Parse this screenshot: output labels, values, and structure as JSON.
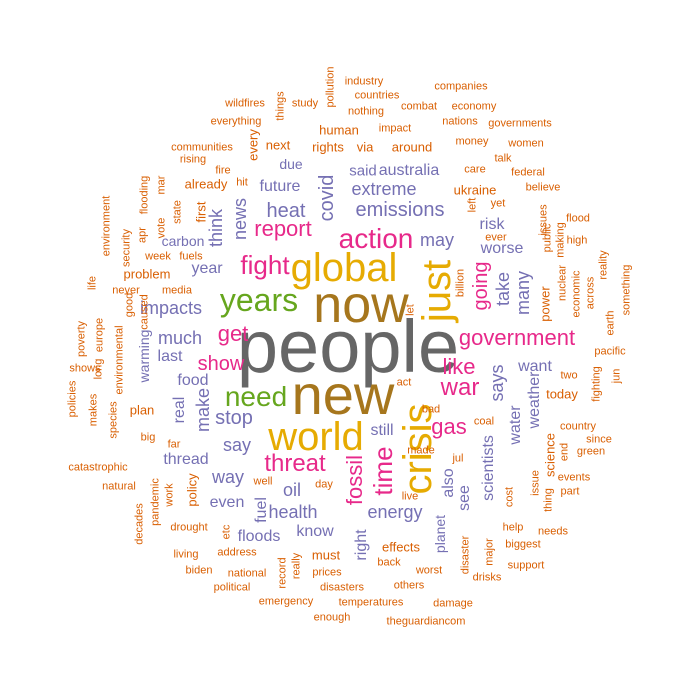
{
  "colors": {
    "gray": "#666666",
    "brown": "#a6761d",
    "gold": "#e6ab02",
    "pink": "#e7298a",
    "green": "#66a61e",
    "purple": "#7570b3",
    "orange": "#d95f02"
  },
  "words": [
    {
      "text": "people",
      "color": "gray"
    },
    {
      "text": "new",
      "color": "brown"
    },
    {
      "text": "now",
      "color": "brown"
    },
    {
      "text": "global",
      "color": "gold"
    },
    {
      "text": "world",
      "color": "gold"
    },
    {
      "text": "crisis",
      "color": "gold"
    },
    {
      "text": "just",
      "color": "gold"
    },
    {
      "text": "years",
      "color": "green"
    },
    {
      "text": "need",
      "color": "green"
    },
    {
      "text": "action",
      "color": "pink"
    },
    {
      "text": "fight",
      "color": "pink"
    },
    {
      "text": "time",
      "color": "pink"
    },
    {
      "text": "threat",
      "color": "pink"
    },
    {
      "text": "war",
      "color": "pink"
    },
    {
      "text": "government",
      "color": "pink"
    },
    {
      "text": "report",
      "color": "pink"
    },
    {
      "text": "like",
      "color": "pink"
    },
    {
      "text": "gas",
      "color": "pink"
    },
    {
      "text": "get",
      "color": "pink"
    },
    {
      "text": "show",
      "color": "pink"
    },
    {
      "text": "fossil",
      "color": "pink"
    },
    {
      "text": "going",
      "color": "pink"
    },
    {
      "text": "emissions",
      "color": "purple"
    },
    {
      "text": "heat",
      "color": "purple"
    },
    {
      "text": "extreme",
      "color": "purple"
    },
    {
      "text": "future",
      "color": "purple"
    },
    {
      "text": "covid",
      "color": "purple"
    },
    {
      "text": "australia",
      "color": "purple"
    },
    {
      "text": "said",
      "color": "purple"
    },
    {
      "text": "may",
      "color": "purple"
    },
    {
      "text": "news",
      "color": "purple"
    },
    {
      "text": "think",
      "color": "purple"
    },
    {
      "text": "year",
      "color": "purple"
    },
    {
      "text": "impacts",
      "color": "purple"
    },
    {
      "text": "much",
      "color": "purple"
    },
    {
      "text": "last",
      "color": "purple"
    },
    {
      "text": "food",
      "color": "purple"
    },
    {
      "text": "make",
      "color": "purple"
    },
    {
      "text": "stop",
      "color": "purple"
    },
    {
      "text": "say",
      "color": "purple"
    },
    {
      "text": "way",
      "color": "purple"
    },
    {
      "text": "even",
      "color": "purple"
    },
    {
      "text": "thread",
      "color": "purple"
    },
    {
      "text": "oil",
      "color": "purple"
    },
    {
      "text": "health",
      "color": "purple"
    },
    {
      "text": "know",
      "color": "purple"
    },
    {
      "text": "fuel",
      "color": "purple"
    },
    {
      "text": "floods",
      "color": "purple"
    },
    {
      "text": "energy",
      "color": "purple"
    },
    {
      "text": "right",
      "color": "purple"
    },
    {
      "text": "still",
      "color": "purple"
    },
    {
      "text": "also",
      "color": "purple"
    },
    {
      "text": "see",
      "color": "purple"
    },
    {
      "text": "says",
      "color": "purple"
    },
    {
      "text": "take",
      "color": "purple"
    },
    {
      "text": "many",
      "color": "purple"
    },
    {
      "text": "worse",
      "color": "purple"
    },
    {
      "text": "risk",
      "color": "purple"
    },
    {
      "text": "want",
      "color": "purple"
    },
    {
      "text": "water",
      "color": "purple"
    },
    {
      "text": "weather",
      "color": "purple"
    },
    {
      "text": "scientists",
      "color": "purple"
    },
    {
      "text": "planet",
      "color": "purple"
    },
    {
      "text": "warming",
      "color": "purple"
    },
    {
      "text": "real",
      "color": "purple"
    },
    {
      "text": "carbon",
      "color": "purple"
    },
    {
      "text": "due",
      "color": "purple"
    },
    {
      "text": "human",
      "color": "orange"
    },
    {
      "text": "rights",
      "color": "orange"
    },
    {
      "text": "via",
      "color": "orange"
    },
    {
      "text": "around",
      "color": "orange"
    },
    {
      "text": "ukraine",
      "color": "orange"
    },
    {
      "text": "already",
      "color": "orange"
    },
    {
      "text": "first",
      "color": "orange"
    },
    {
      "text": "every",
      "color": "orange"
    },
    {
      "text": "next",
      "color": "orange"
    },
    {
      "text": "problem",
      "color": "orange"
    },
    {
      "text": "plan",
      "color": "orange"
    },
    {
      "text": "policy",
      "color": "orange"
    },
    {
      "text": "must",
      "color": "orange"
    },
    {
      "text": "effects",
      "color": "orange"
    },
    {
      "text": "today",
      "color": "orange"
    },
    {
      "text": "power",
      "color": "orange"
    },
    {
      "text": "science",
      "color": "orange"
    },
    {
      "text": "pollution",
      "color": "orange"
    },
    {
      "text": "industry",
      "color": "orange"
    },
    {
      "text": "countries",
      "color": "orange"
    },
    {
      "text": "companies",
      "color": "orange"
    },
    {
      "text": "study",
      "color": "orange"
    },
    {
      "text": "things",
      "color": "orange"
    },
    {
      "text": "wildfires",
      "color": "orange"
    },
    {
      "text": "everything",
      "color": "orange"
    },
    {
      "text": "nothing",
      "color": "orange"
    },
    {
      "text": "combat",
      "color": "orange"
    },
    {
      "text": "economy",
      "color": "orange"
    },
    {
      "text": "nations",
      "color": "orange"
    },
    {
      "text": "governments",
      "color": "orange"
    },
    {
      "text": "impact",
      "color": "orange"
    },
    {
      "text": "money",
      "color": "orange"
    },
    {
      "text": "women",
      "color": "orange"
    },
    {
      "text": "communities",
      "color": "orange"
    },
    {
      "text": "rising",
      "color": "orange"
    },
    {
      "text": "fire",
      "color": "orange"
    },
    {
      "text": "hit",
      "color": "orange"
    },
    {
      "text": "care",
      "color": "orange"
    },
    {
      "text": "talk",
      "color": "orange"
    },
    {
      "text": "federal",
      "color": "orange"
    },
    {
      "text": "believe",
      "color": "orange"
    },
    {
      "text": "flooding",
      "color": "orange"
    },
    {
      "text": "mar",
      "color": "orange"
    },
    {
      "text": "state",
      "color": "orange"
    },
    {
      "text": "apr",
      "color": "orange"
    },
    {
      "text": "vote",
      "color": "orange"
    },
    {
      "text": "environment",
      "color": "orange"
    },
    {
      "text": "security",
      "color": "orange"
    },
    {
      "text": "week",
      "color": "orange"
    },
    {
      "text": "fuels",
      "color": "orange"
    },
    {
      "text": "life",
      "color": "orange"
    },
    {
      "text": "never",
      "color": "orange"
    },
    {
      "text": "media",
      "color": "orange"
    },
    {
      "text": "caused",
      "color": "orange"
    },
    {
      "text": "good",
      "color": "orange"
    },
    {
      "text": "yet",
      "color": "orange"
    },
    {
      "text": "ever",
      "color": "orange"
    },
    {
      "text": "left",
      "color": "orange"
    },
    {
      "text": "public",
      "color": "orange"
    },
    {
      "text": "issues",
      "color": "orange"
    },
    {
      "text": "making",
      "color": "orange"
    },
    {
      "text": "high",
      "color": "orange"
    },
    {
      "text": "flood",
      "color": "orange"
    },
    {
      "text": "reality",
      "color": "orange"
    },
    {
      "text": "something",
      "color": "orange"
    },
    {
      "text": "billion",
      "color": "orange"
    },
    {
      "text": "economic",
      "color": "orange"
    },
    {
      "text": "nuclear",
      "color": "orange"
    },
    {
      "text": "across",
      "color": "orange"
    },
    {
      "text": "earth",
      "color": "orange"
    },
    {
      "text": "let",
      "color": "orange"
    },
    {
      "text": "poverty",
      "color": "orange"
    },
    {
      "text": "europe",
      "color": "orange"
    },
    {
      "text": "long",
      "color": "orange"
    },
    {
      "text": "shows",
      "color": "orange"
    },
    {
      "text": "policies",
      "color": "orange"
    },
    {
      "text": "environmental",
      "color": "orange"
    },
    {
      "text": "makes",
      "color": "orange"
    },
    {
      "text": "species",
      "color": "orange"
    },
    {
      "text": "big",
      "color": "orange"
    },
    {
      "text": "far",
      "color": "orange"
    },
    {
      "text": "catastrophic",
      "color": "orange"
    },
    {
      "text": "natural",
      "color": "orange"
    },
    {
      "text": "work",
      "color": "orange"
    },
    {
      "text": "pandemic",
      "color": "orange"
    },
    {
      "text": "decades",
      "color": "orange"
    },
    {
      "text": "drought",
      "color": "orange"
    },
    {
      "text": "living",
      "color": "orange"
    },
    {
      "text": "etc",
      "color": "orange"
    },
    {
      "text": "biden",
      "color": "orange"
    },
    {
      "text": "address",
      "color": "orange"
    },
    {
      "text": "national",
      "color": "orange"
    },
    {
      "text": "political",
      "color": "orange"
    },
    {
      "text": "really",
      "color": "orange"
    },
    {
      "text": "record",
      "color": "orange"
    },
    {
      "text": "well",
      "color": "orange"
    },
    {
      "text": "day",
      "color": "orange"
    },
    {
      "text": "prices",
      "color": "orange"
    },
    {
      "text": "disasters",
      "color": "orange"
    },
    {
      "text": "emergency",
      "color": "orange"
    },
    {
      "text": "temperatures",
      "color": "orange"
    },
    {
      "text": "enough",
      "color": "orange"
    },
    {
      "text": "theguardiancom",
      "color": "orange"
    },
    {
      "text": "damage",
      "color": "orange"
    },
    {
      "text": "others",
      "color": "orange"
    },
    {
      "text": "back",
      "color": "orange"
    },
    {
      "text": "worst",
      "color": "orange"
    },
    {
      "text": "made",
      "color": "orange"
    },
    {
      "text": "disaster",
      "color": "orange"
    },
    {
      "text": "major",
      "color": "orange"
    },
    {
      "text": "drisks",
      "color": "orange"
    },
    {
      "text": "act",
      "color": "orange"
    },
    {
      "text": "bad",
      "color": "orange"
    },
    {
      "text": "jul",
      "color": "orange"
    },
    {
      "text": "coal",
      "color": "orange"
    },
    {
      "text": "live",
      "color": "orange"
    },
    {
      "text": "cost",
      "color": "orange"
    },
    {
      "text": "help",
      "color": "orange"
    },
    {
      "text": "biggest",
      "color": "orange"
    },
    {
      "text": "needs",
      "color": "orange"
    },
    {
      "text": "support",
      "color": "orange"
    },
    {
      "text": "issue",
      "color": "orange"
    },
    {
      "text": "end",
      "color": "orange"
    },
    {
      "text": "thing",
      "color": "orange"
    },
    {
      "text": "country",
      "color": "orange"
    },
    {
      "text": "green",
      "color": "orange"
    },
    {
      "text": "events",
      "color": "orange"
    },
    {
      "text": "part",
      "color": "orange"
    },
    {
      "text": "since",
      "color": "orange"
    },
    {
      "text": "fighting",
      "color": "orange"
    },
    {
      "text": "two",
      "color": "orange"
    },
    {
      "text": "pacific",
      "color": "orange"
    },
    {
      "text": "jun",
      "color": "orange"
    }
  ]
}
